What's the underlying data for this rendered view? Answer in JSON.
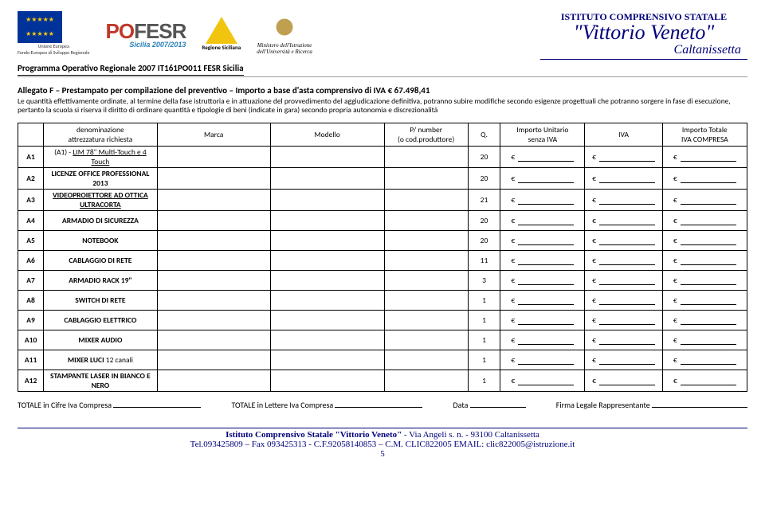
{
  "header": {
    "eu_caption1": "Unione Europea",
    "eu_caption2": "Fondo Europeo di Sviluppo Regionale",
    "regione": "Regione Siciliana",
    "ministero1": "Ministero dell'Istruzione",
    "ministero2": "dell'Università e Ricerca",
    "school_ist": "ISTITUTO COMPRENSIVO STATALE",
    "school_name": "\"Vittorio Veneto\"",
    "school_city": "Caltanissetta",
    "program": "Programma Operativo Regionale 2007 IT161PO011 FESR Sicilia"
  },
  "title": "Allegato F – Prestampato per compilazione del preventivo – Importo a base d'asta comprensivo di IVA € 67.498,41",
  "paragraph": "Le quantità effettivamente ordinate, al termine della fase istruttoria e in attuazione del provvedimento del aggiudicazione definitiva, potranno subire modifiche secondo esigenze progettuali che potranno sorgere in fase di esecuzione, pertanto la scuola si riserva il diritto di ordinare quantità e tipologie di beni (indicate in gara) secondo propria autonomia e discrezionalità",
  "columns": {
    "denom1": "denominazione",
    "denom2": "attrezzatura richiesta",
    "marca": "Marca",
    "modello": "Modello",
    "pn1": "P/ number",
    "pn2": "(o cod.produttore)",
    "q": "Q.",
    "unit1": "Importo Unitario",
    "unit2": "senza IVA",
    "iva": "IVA",
    "tot1": "Importo Totale",
    "tot2": "IVA COMPRESA"
  },
  "rows": [
    {
      "id": "A1",
      "denom": "(A1) - <u>LIM 78\" Multi-Touch e 4 Touch</u>",
      "q": "20"
    },
    {
      "id": "A2",
      "denom": "<b>LICENZE OFFICE PROFESSIONAL 2013</b>",
      "q": "20"
    },
    {
      "id": "A3",
      "denom": "<b><u>VIDEOPROIETTORE AD OTTICA ULTRACORTA</u></b>",
      "q": "21"
    },
    {
      "id": "A4",
      "denom": "<b>ARMADIO DI SICUREZZA</b>",
      "q": "20"
    },
    {
      "id": "A5",
      "denom": "<b>NOTEBOOK</b>",
      "q": "20"
    },
    {
      "id": "A6",
      "denom": "<b>CABLAGGIO DI RETE</b>",
      "q": "11"
    },
    {
      "id": "A7",
      "denom": "<b>ARMADIO RACK 19\"</b>",
      "q": "3"
    },
    {
      "id": "A8",
      "denom": "<b>SWITCH DI RETE</b>",
      "q": "1"
    },
    {
      "id": "A9",
      "denom": "<b>CABLAGGIO ELETTRICO</b>",
      "q": "1"
    },
    {
      "id": "A10",
      "denom": "<b>MIXER AUDIO</b>",
      "q": "1"
    },
    {
      "id": "A11",
      "denom": "<b>MIXER LUCI</b> 12 canali",
      "q": "1"
    },
    {
      "id": "A12",
      "denom": "<b>STAMPANTE LASER IN BIANCO E NERO</b>",
      "q": "1"
    }
  ],
  "totals": {
    "cifre": "TOTALE in Cifre Iva Compresa",
    "lettere": "TOTALE in Lettere Iva Compresa",
    "data": "Data",
    "firma": "Firma Legale Rappresentante"
  },
  "footer": {
    "line1a": "Istituto Comprensivo Statale \"Vittorio Veneto\"",
    "line1b": " - Via Angeli s. n. - 93100 Caltanissetta",
    "line2": "Tel.093425809 – Fax 093425313 - C.F.92058140853 – C.M. CLIC822005 EMAIL: ",
    "email": "clic822005@istruzione.it",
    "page": "5"
  },
  "euro": "€"
}
